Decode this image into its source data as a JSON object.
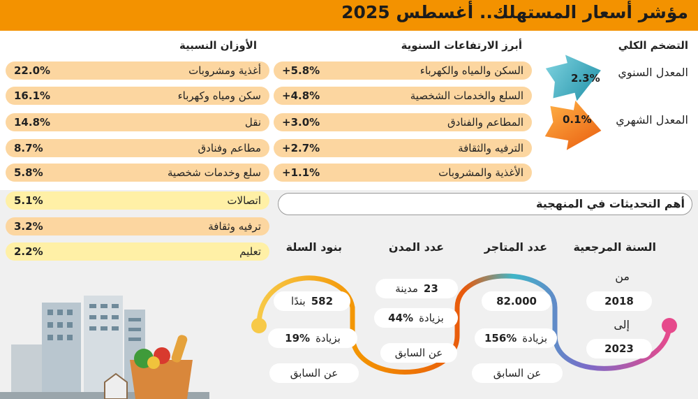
{
  "title": "مؤشر أسعار المستهلك.. أغسطس 2025",
  "inflation": {
    "heading": "التضخم الكلي",
    "annual": {
      "label": "المعدل السنوي",
      "value": "2.3%"
    },
    "monthly": {
      "label": "المعدل الشهري",
      "value": "0.1%"
    },
    "colors": {
      "annual": "#3fb6c8",
      "monthly": "#f39200"
    }
  },
  "increases": {
    "heading": "أبرز الارتفاعات السنوية",
    "items": [
      {
        "label": "السكن والمياه والكهرباء",
        "value": "+5.8%"
      },
      {
        "label": "السلع والخدمات الشخصية",
        "value": "+4.8%"
      },
      {
        "label": "المطاعم والفنادق",
        "value": "+3.0%"
      },
      {
        "label": "الترفيه والثقافة",
        "value": "+2.7%"
      },
      {
        "label": "الأغذية والمشروبات",
        "value": "+1.1%"
      }
    ]
  },
  "weights": {
    "heading": "الأوزان النسبية",
    "items": [
      {
        "label": "أغذية ومشروبات",
        "value": "22.0%"
      },
      {
        "label": "سكن ومياه وكهرباء",
        "value": "16.1%"
      },
      {
        "label": "نقل",
        "value": "14.8%"
      },
      {
        "label": "مطاعم وفنادق",
        "value": "8.7%"
      },
      {
        "label": "سلع وخدمات شخصية",
        "value": "5.8%"
      },
      {
        "label": "اتصالات",
        "value": "5.1%"
      },
      {
        "label": "ترفيه وثقافة",
        "value": "3.2%"
      },
      {
        "label": "تعليم",
        "value": "2.2%"
      }
    ]
  },
  "methodology": {
    "heading": "أهم التحديثات في المنهجية",
    "base_year": {
      "heading": "السنة المرجعية",
      "from_label": "من",
      "from": "2018",
      "to_label": "إلى",
      "to": "2023"
    },
    "stores": {
      "heading": "عدد المتاجر",
      "count": "82.000",
      "increase_label": "بزيادة",
      "increase": "156%",
      "suffix": "عن السابق"
    },
    "cities": {
      "heading": "عدد المدن",
      "count": "23",
      "unit": "مدينة",
      "increase_label": "بزيادة",
      "increase": "44%",
      "suffix": "عن السابق"
    },
    "basket": {
      "heading": "بنود السلة",
      "count": "582",
      "unit": "بندًا",
      "increase_label": "بزيادة",
      "increase": "19%",
      "suffix": "عن السابق"
    }
  }
}
